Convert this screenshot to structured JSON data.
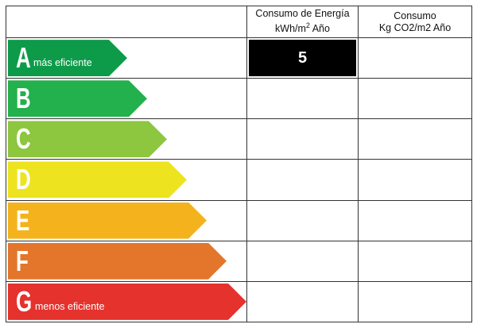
{
  "headers": {
    "energy_line1": "Consumo de Energía",
    "energy_unit_pre": "kWh/m",
    "energy_unit_sup": "2",
    "energy_unit_post": " Año",
    "co2_line1": "Consumo",
    "co2_line2": "Kg CO2/m2 Año"
  },
  "ratings": [
    {
      "letter": "A",
      "caption": "más eficiente",
      "color": "#0d9b4a"
    },
    {
      "letter": "B",
      "caption": "",
      "color": "#22b14c"
    },
    {
      "letter": "C",
      "caption": "",
      "color": "#8dc63f"
    },
    {
      "letter": "D",
      "caption": "",
      "color": "#eee31f"
    },
    {
      "letter": "E",
      "caption": "",
      "color": "#f4b31d"
    },
    {
      "letter": "F",
      "caption": "",
      "color": "#e3762b"
    },
    {
      "letter": "G",
      "caption": "menos eficiente",
      "color": "#e5322d"
    }
  ],
  "values": {
    "energy_rating_value": "5",
    "energy_rating_letter": "A",
    "energy_box_color": "#000000"
  }
}
